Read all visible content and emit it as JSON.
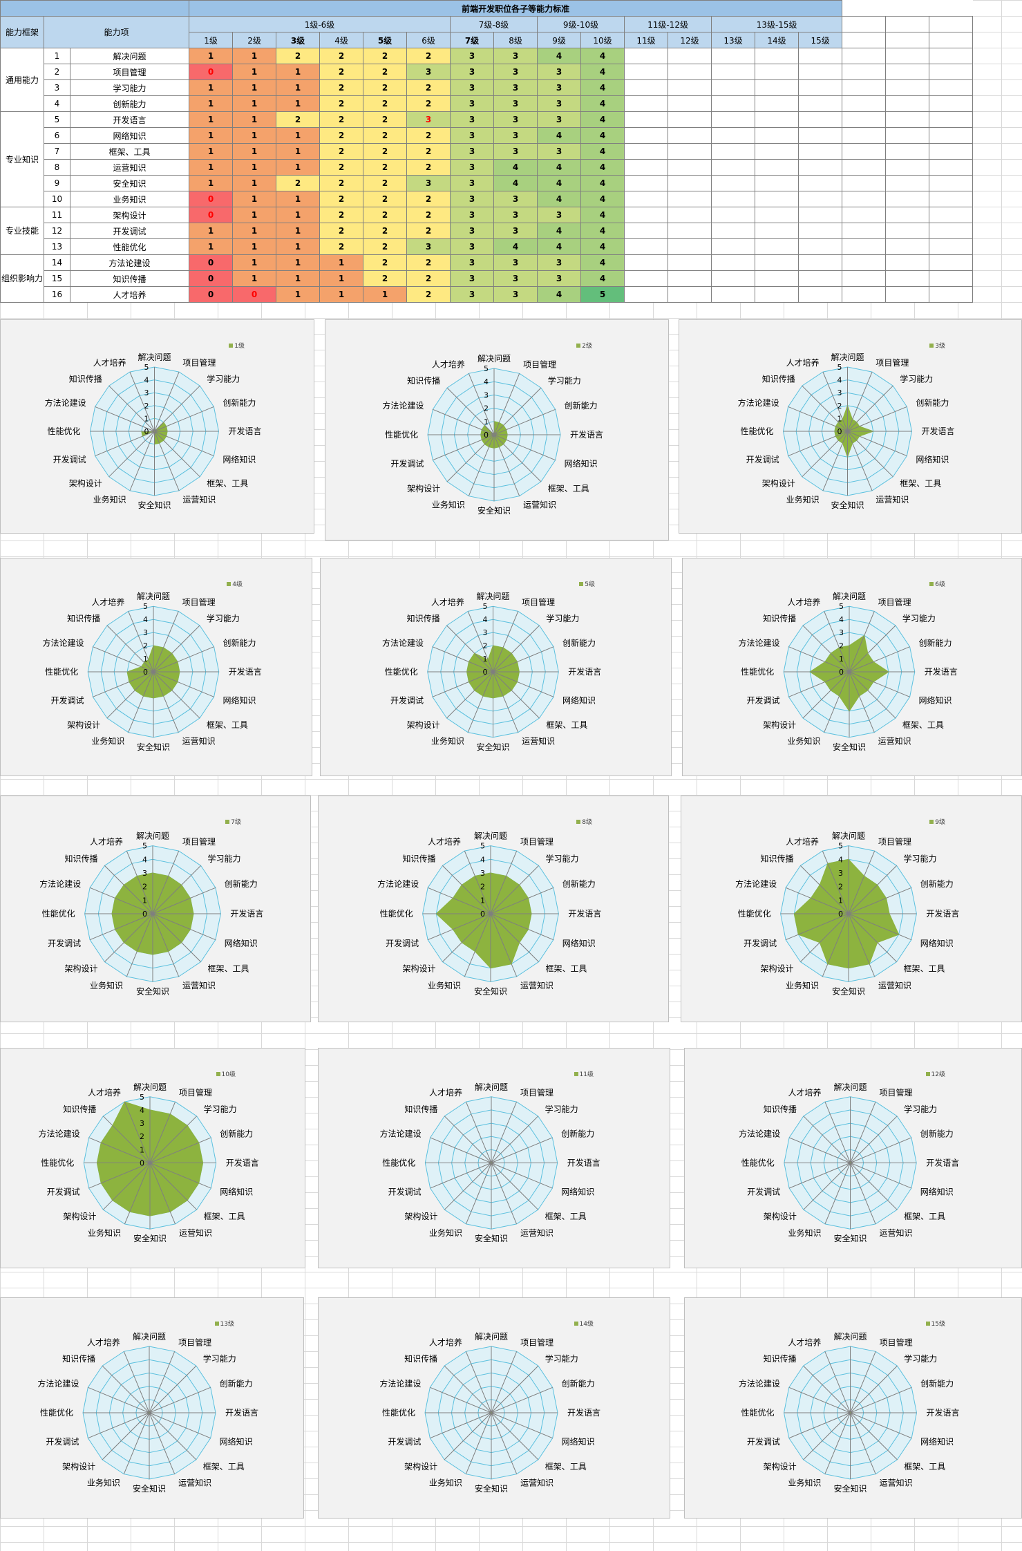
{
  "sheet": {
    "title": "前端开发职位各子等能力标准",
    "col_framework": "能力框架",
    "col_item": "能力项",
    "groups": [
      "1级-6级",
      "7级-8级",
      "9级-10级",
      "11级-12级",
      "13级-15级"
    ],
    "levels": [
      "1级",
      "2级",
      "3级",
      "4级",
      "5级",
      "6级",
      "7级",
      "8级",
      "9级",
      "10级",
      "11级",
      "12级",
      "13级",
      "14级",
      "15级"
    ],
    "bold_levels": [
      2,
      4,
      6
    ],
    "frameworks": [
      {
        "name": "通用能力",
        "rows": 4
      },
      {
        "name": "专业知识",
        "rows": 6
      },
      {
        "name": "专业技能",
        "rows": 3
      },
      {
        "name": "组织影响力",
        "rows": 3
      }
    ],
    "rows": [
      {
        "n": "1",
        "item": "解决问题",
        "vals": [
          "1",
          "1",
          "2",
          "2",
          "2",
          "2",
          "3",
          "3",
          "4",
          "4"
        ]
      },
      {
        "n": "2",
        "item": "项目管理",
        "vals": [
          "0",
          "1",
          "1",
          "2",
          "2",
          "3",
          "3",
          "3",
          "3",
          "4"
        ]
      },
      {
        "n": "3",
        "item": "学习能力",
        "vals": [
          "1",
          "1",
          "1",
          "2",
          "2",
          "2",
          "3",
          "3",
          "3",
          "4"
        ]
      },
      {
        "n": "4",
        "item": "创新能力",
        "vals": [
          "1",
          "1",
          "1",
          "2",
          "2",
          "2",
          "3",
          "3",
          "3",
          "4"
        ]
      },
      {
        "n": "5",
        "item": "开发语言",
        "vals": [
          "1",
          "1",
          "2",
          "2",
          "2",
          "3",
          "3",
          "3",
          "3",
          "4"
        ]
      },
      {
        "n": "6",
        "item": "网络知识",
        "vals": [
          "1",
          "1",
          "1",
          "2",
          "2",
          "2",
          "3",
          "3",
          "4",
          "4"
        ]
      },
      {
        "n": "7",
        "item": "框架、工具",
        "vals": [
          "1",
          "1",
          "1",
          "2",
          "2",
          "2",
          "3",
          "3",
          "3",
          "4"
        ]
      },
      {
        "n": "8",
        "item": "运营知识",
        "vals": [
          "1",
          "1",
          "1",
          "2",
          "2",
          "2",
          "3",
          "4",
          "4",
          "4"
        ]
      },
      {
        "n": "9",
        "item": "安全知识",
        "vals": [
          "1",
          "1",
          "2",
          "2",
          "2",
          "3",
          "3",
          "4",
          "4",
          "4"
        ]
      },
      {
        "n": "10",
        "item": "业务知识",
        "vals": [
          "0",
          "1",
          "1",
          "2",
          "2",
          "2",
          "3",
          "3",
          "4",
          "4"
        ]
      },
      {
        "n": "11",
        "item": "架构设计",
        "vals": [
          "0",
          "1",
          "1",
          "2",
          "2",
          "2",
          "3",
          "3",
          "3",
          "4"
        ]
      },
      {
        "n": "12",
        "item": "开发调试",
        "vals": [
          "1",
          "1",
          "1",
          "2",
          "2",
          "2",
          "3",
          "3",
          "4",
          "4"
        ]
      },
      {
        "n": "13",
        "item": "性能优化",
        "vals": [
          "1",
          "1",
          "1",
          "2",
          "2",
          "3",
          "3",
          "4",
          "4",
          "4"
        ]
      },
      {
        "n": "14",
        "item": "方法论建设",
        "vals": [
          "0",
          "1",
          "1",
          "1",
          "2",
          "2",
          "3",
          "3",
          "3",
          "4"
        ]
      },
      {
        "n": "15",
        "item": "知识传播",
        "vals": [
          "0",
          "1",
          "1",
          "1",
          "2",
          "2",
          "3",
          "3",
          "3",
          "4"
        ]
      },
      {
        "n": "16",
        "item": "人才培养",
        "vals": [
          "0",
          "0",
          "1",
          "1",
          "1",
          "2",
          "3",
          "3",
          "4",
          "5"
        ]
      }
    ],
    "red_cells": [
      [
        1,
        0
      ],
      [
        9,
        0
      ],
      [
        10,
        0
      ],
      [
        4,
        5
      ],
      [
        15,
        1
      ]
    ],
    "value_colors": {
      "0": "#f8696b",
      "1": "#f4a26b",
      "2": "#fee982",
      "3": "#c4d981",
      "4": "#a8d07f",
      "5": "#63be7b"
    }
  },
  "chart_data": [
    {
      "type": "radar",
      "legend": "1级",
      "categories": [
        "解决问题",
        "项目管理",
        "学习能力",
        "创新能力",
        "开发语言",
        "网络知识",
        "框架、工具",
        "运营知识",
        "安全知识",
        "业务知识",
        "架构设计",
        "开发调试",
        "性能优化",
        "方法论建设",
        "知识传播",
        "人才培养"
      ],
      "values": [
        1,
        0,
        1,
        1,
        1,
        1,
        1,
        1,
        1,
        0,
        0,
        1,
        1,
        0,
        0,
        0
      ],
      "ylim": [
        0,
        5
      ],
      "ticks": [
        0,
        1,
        2,
        3,
        4,
        5
      ]
    },
    {
      "type": "radar",
      "legend": "2级",
      "values": [
        1,
        1,
        1,
        1,
        1,
        1,
        1,
        1,
        1,
        1,
        1,
        1,
        1,
        1,
        1,
        0
      ],
      "ylim": [
        0,
        5
      ],
      "ticks": [
        0,
        1,
        2,
        3,
        4,
        5
      ]
    },
    {
      "type": "radar",
      "legend": "3级",
      "values": [
        2,
        1,
        1,
        1,
        2,
        1,
        1,
        1,
        2,
        1,
        1,
        1,
        1,
        1,
        1,
        1
      ],
      "ylim": [
        0,
        5
      ],
      "ticks": [
        0,
        1,
        2,
        3,
        4,
        5
      ]
    },
    {
      "type": "radar",
      "legend": "4级",
      "values": [
        2,
        2,
        2,
        2,
        2,
        2,
        2,
        2,
        2,
        2,
        2,
        2,
        2,
        1,
        1,
        1
      ],
      "ylim": [
        0,
        5
      ],
      "ticks": [
        0,
        1,
        2,
        3,
        4,
        5
      ]
    },
    {
      "type": "radar",
      "legend": "5级",
      "values": [
        2,
        2,
        2,
        2,
        2,
        2,
        2,
        2,
        2,
        2,
        2,
        2,
        2,
        2,
        2,
        1
      ],
      "ylim": [
        0,
        5
      ],
      "ticks": [
        0,
        1,
        2,
        3,
        4,
        5
      ]
    },
    {
      "type": "radar",
      "legend": "6级",
      "values": [
        2,
        3,
        2,
        2,
        3,
        2,
        2,
        2,
        3,
        2,
        2,
        2,
        3,
        2,
        2,
        2
      ],
      "ylim": [
        0,
        5
      ],
      "ticks": [
        0,
        1,
        2,
        3,
        4,
        5
      ]
    },
    {
      "type": "radar",
      "legend": "7级",
      "values": [
        3,
        3,
        3,
        3,
        3,
        3,
        3,
        3,
        3,
        3,
        3,
        3,
        3,
        3,
        3,
        3
      ],
      "ylim": [
        0,
        5
      ],
      "ticks": [
        0,
        1,
        2,
        3,
        4,
        5
      ]
    },
    {
      "type": "radar",
      "legend": "8级",
      "values": [
        3,
        3,
        3,
        3,
        3,
        3,
        3,
        4,
        4,
        3,
        3,
        3,
        4,
        3,
        3,
        3
      ],
      "ylim": [
        0,
        5
      ],
      "ticks": [
        0,
        1,
        2,
        3,
        4,
        5
      ]
    },
    {
      "type": "radar",
      "legend": "9级",
      "values": [
        4,
        3,
        3,
        3,
        3,
        4,
        3,
        4,
        4,
        4,
        3,
        4,
        4,
        3,
        3,
        4
      ],
      "ylim": [
        0,
        5
      ],
      "ticks": [
        0,
        1,
        2,
        3,
        4,
        5
      ]
    },
    {
      "type": "radar",
      "legend": "10级",
      "values": [
        4,
        4,
        4,
        4,
        4,
        4,
        4,
        4,
        4,
        4,
        4,
        4,
        4,
        4,
        4,
        5
      ],
      "ylim": [
        0,
        5
      ],
      "ticks": [
        0,
        1,
        2,
        3,
        4,
        5
      ]
    },
    {
      "type": "radar",
      "legend": "11级",
      "values": [
        0,
        0,
        0,
        0,
        0,
        0,
        0,
        0,
        0,
        0,
        0,
        0,
        0,
        0,
        0,
        0
      ],
      "ylim": [
        0,
        5
      ],
      "ticks": []
    },
    {
      "type": "radar",
      "legend": "12级",
      "values": [
        0,
        0,
        0,
        0,
        0,
        0,
        0,
        0,
        0,
        0,
        0,
        0,
        0,
        0,
        0,
        0
      ],
      "ylim": [
        0,
        5
      ],
      "ticks": []
    },
    {
      "type": "radar",
      "legend": "13级",
      "values": [
        0,
        0,
        0,
        0,
        0,
        0,
        0,
        0,
        0,
        0,
        0,
        0,
        0,
        0,
        0,
        0
      ],
      "ylim": [
        0,
        5
      ],
      "ticks": []
    },
    {
      "type": "radar",
      "legend": "14级",
      "values": [
        0,
        0,
        0,
        0,
        0,
        0,
        0,
        0,
        0,
        0,
        0,
        0,
        0,
        0,
        0,
        0
      ],
      "ylim": [
        0,
        5
      ],
      "ticks": []
    },
    {
      "type": "radar",
      "legend": "15级",
      "values": [
        0,
        0,
        0,
        0,
        0,
        0,
        0,
        0,
        0,
        0,
        0,
        0,
        0,
        0,
        0,
        0
      ],
      "ylim": [
        0,
        5
      ],
      "ticks": []
    }
  ],
  "colors": {
    "fill": "#8db33f",
    "grid": "#5bc0de",
    "spoke": "#7f7f7f",
    "plot_bg": "#dff1f7"
  }
}
